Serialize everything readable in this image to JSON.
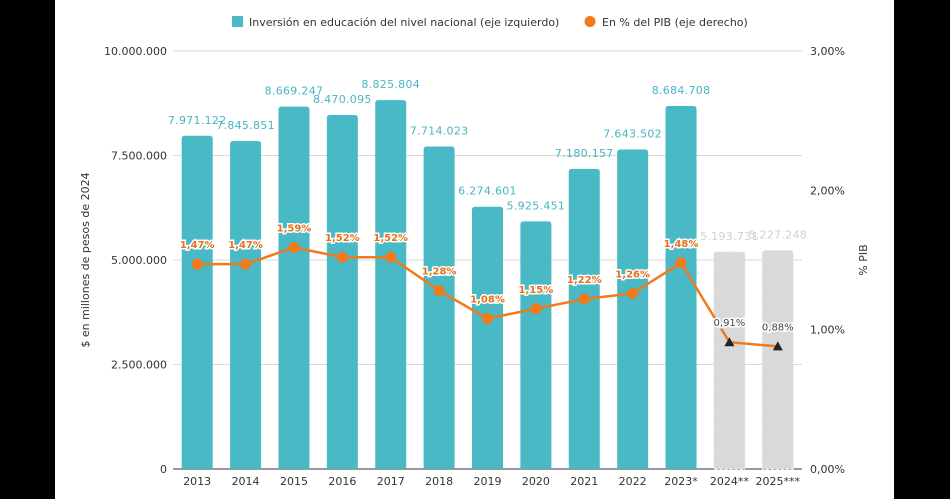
{
  "chart_data": {
    "type": "bar",
    "title": "",
    "categories": [
      "2013",
      "2014",
      "2015",
      "2016",
      "2017",
      "2018",
      "2019",
      "2020",
      "2021",
      "2022",
      "2023*",
      "2024**",
      "2025***"
    ],
    "series": [
      {
        "name": "Inversión en educación del nivel nacional (eje izquierdo)",
        "type": "bar",
        "axis": "left",
        "color": "#48b9c5",
        "projected_color": "#d9d9d9",
        "values": [
          7971122,
          7845851,
          8669247,
          8470095,
          8825804,
          7714023,
          6274601,
          5925451,
          7180157,
          7643502,
          8684708,
          5193731,
          5227248
        ],
        "labels": [
          "7.971.122",
          "7.845.851",
          "8.669.247",
          "8.470.095",
          "8.825.804",
          "7.714.023",
          "6.274.601",
          "5.925.451",
          "7.180.157",
          "7.643.502",
          "8.684.708",
          "5.193.731",
          "5.227.248"
        ],
        "projected": [
          false,
          false,
          false,
          false,
          false,
          false,
          false,
          false,
          false,
          false,
          false,
          true,
          true
        ]
      },
      {
        "name": "En % del PIB (eje derecho)",
        "type": "line",
        "axis": "right",
        "color": "#f07a1c",
        "values": [
          1.47,
          1.47,
          1.59,
          1.52,
          1.52,
          1.28,
          1.08,
          1.15,
          1.22,
          1.26,
          1.48,
          0.91,
          0.88
        ],
        "labels": [
          "1,47%",
          "1,47%",
          "1,59%",
          "1,52%",
          "1,52%",
          "1,28%",
          "1,08%",
          "1,15%",
          "1,22%",
          "1,26%",
          "1,48%",
          "0,91%",
          "0,88%"
        ],
        "projected": [
          false,
          false,
          false,
          false,
          false,
          false,
          false,
          false,
          false,
          false,
          false,
          true,
          true
        ]
      }
    ],
    "ylabel": "$ en millones de pesos de 2024",
    "ylim": [
      0,
      10000000
    ],
    "yticks": [
      "0",
      "2.500.000",
      "5.000.000",
      "7.500.000",
      "10.000.000"
    ],
    "y2label": "% PIB",
    "y2lim": [
      0,
      3
    ],
    "y2ticks": [
      "0,00%",
      "1,00%",
      "2,00%",
      "3,00%"
    ],
    "grid": true,
    "legend_position": "top-center"
  }
}
